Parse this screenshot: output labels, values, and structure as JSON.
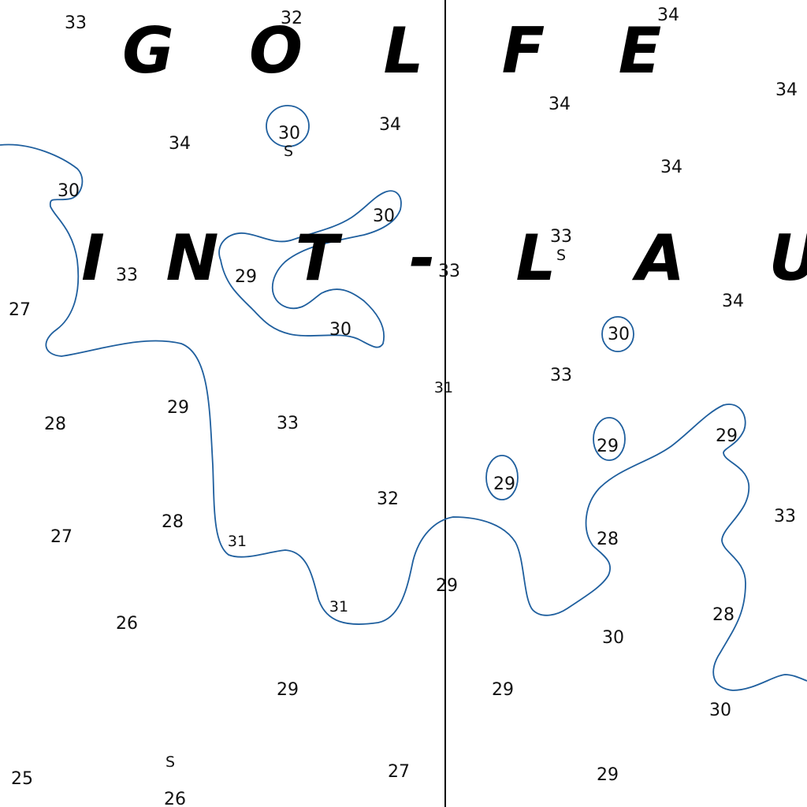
{
  "chart": {
    "place_name_line1": [
      "G",
      "O",
      "L",
      "F",
      "E"
    ],
    "place_name_line2": [
      "I",
      "N",
      "T",
      "-",
      "L",
      "A",
      "U"
    ],
    "seabed_symbol": "S",
    "colors": {
      "contour": "#1f5f9e",
      "text": "#111111",
      "background": "#ffffff"
    }
  },
  "soundings": [
    "33",
    "32",
    "34",
    "34",
    "34",
    "30",
    "34",
    "34",
    "34",
    "30",
    "30",
    "33",
    "29",
    "33",
    "33",
    "27",
    "30",
    "34",
    "30",
    "31",
    "28",
    "29",
    "33",
    "33",
    "29",
    "29",
    "29",
    "32",
    "33",
    "27",
    "28",
    "31",
    "28",
    "29",
    "31",
    "26",
    "30",
    "28",
    "29",
    "29",
    "30",
    "25",
    "26",
    "27",
    "29"
  ]
}
